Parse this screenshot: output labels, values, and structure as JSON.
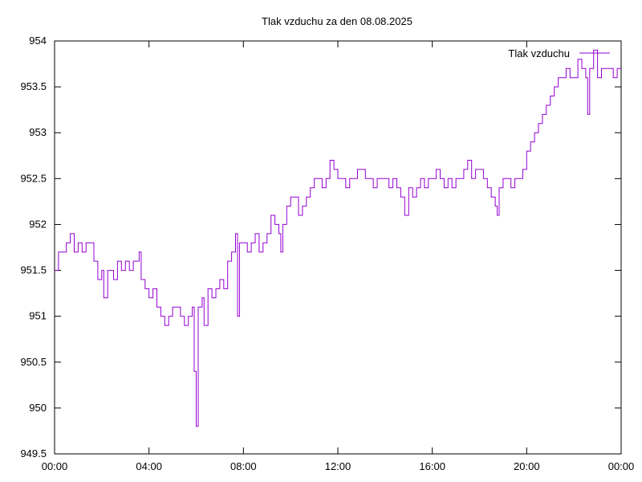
{
  "chart_data": {
    "type": "line",
    "title": "Tlak vzduchu za den 08.08.2025",
    "xlabel": "",
    "ylabel": "",
    "xlim": [
      "00:00",
      "24:00"
    ],
    "ylim": [
      949.5,
      954
    ],
    "x_ticks": [
      "00:00",
      "04:00",
      "08:00",
      "12:00",
      "16:00",
      "20:00",
      "00:00"
    ],
    "y_ticks": [
      "949.5",
      "950",
      "950.5",
      "951",
      "951.5",
      "952",
      "952.5",
      "953",
      "953.5",
      "954"
    ],
    "grid": false,
    "legend_position": "top-right",
    "series": [
      {
        "name": "Tlak vzduchu",
        "color": "#9400d3",
        "points": [
          [
            "00:00",
            951.5
          ],
          [
            "00:10",
            951.7
          ],
          [
            "00:20",
            951.7
          ],
          [
            "00:30",
            951.8
          ],
          [
            "00:40",
            951.9
          ],
          [
            "00:50",
            951.7
          ],
          [
            "01:00",
            951.8
          ],
          [
            "01:10",
            951.7
          ],
          [
            "01:20",
            951.8
          ],
          [
            "01:30",
            951.8
          ],
          [
            "01:40",
            951.6
          ],
          [
            "01:50",
            951.4
          ],
          [
            "02:00",
            951.5
          ],
          [
            "02:05",
            951.2
          ],
          [
            "02:15",
            951.5
          ],
          [
            "02:30",
            951.4
          ],
          [
            "02:40",
            951.6
          ],
          [
            "02:50",
            951.5
          ],
          [
            "03:00",
            951.6
          ],
          [
            "03:10",
            951.5
          ],
          [
            "03:20",
            951.6
          ],
          [
            "03:30",
            951.6
          ],
          [
            "03:35",
            951.7
          ],
          [
            "03:40",
            951.4
          ],
          [
            "03:50",
            951.3
          ],
          [
            "04:00",
            951.2
          ],
          [
            "04:10",
            951.3
          ],
          [
            "04:20",
            951.1
          ],
          [
            "04:30",
            951.0
          ],
          [
            "04:40",
            950.9
          ],
          [
            "04:50",
            951.0
          ],
          [
            "05:00",
            951.1
          ],
          [
            "05:10",
            951.1
          ],
          [
            "05:20",
            951.0
          ],
          [
            "05:30",
            950.9
          ],
          [
            "05:40",
            951.0
          ],
          [
            "05:50",
            951.1
          ],
          [
            "05:55",
            950.4
          ],
          [
            "06:00",
            949.8
          ],
          [
            "06:05",
            951.1
          ],
          [
            "06:15",
            951.2
          ],
          [
            "06:20",
            950.9
          ],
          [
            "06:30",
            951.3
          ],
          [
            "06:40",
            951.2
          ],
          [
            "06:50",
            951.3
          ],
          [
            "07:00",
            951.4
          ],
          [
            "07:10",
            951.3
          ],
          [
            "07:20",
            951.6
          ],
          [
            "07:30",
            951.7
          ],
          [
            "07:40",
            951.9
          ],
          [
            "07:45",
            951.0
          ],
          [
            "07:50",
            951.8
          ],
          [
            "08:00",
            951.8
          ],
          [
            "08:10",
            951.7
          ],
          [
            "08:20",
            951.8
          ],
          [
            "08:30",
            951.9
          ],
          [
            "08:40",
            951.7
          ],
          [
            "08:50",
            951.8
          ],
          [
            "09:00",
            951.9
          ],
          [
            "09:10",
            952.1
          ],
          [
            "09:20",
            952.0
          ],
          [
            "09:30",
            951.9
          ],
          [
            "09:35",
            951.7
          ],
          [
            "09:40",
            952.0
          ],
          [
            "09:50",
            952.2
          ],
          [
            "10:00",
            952.3
          ],
          [
            "10:10",
            952.3
          ],
          [
            "10:20",
            952.1
          ],
          [
            "10:30",
            952.2
          ],
          [
            "10:40",
            952.3
          ],
          [
            "10:50",
            952.4
          ],
          [
            "11:00",
            952.5
          ],
          [
            "11:10",
            952.5
          ],
          [
            "11:20",
            952.4
          ],
          [
            "11:30",
            952.5
          ],
          [
            "11:40",
            952.7
          ],
          [
            "11:50",
            952.6
          ],
          [
            "12:00",
            952.5
          ],
          [
            "12:10",
            952.5
          ],
          [
            "12:20",
            952.4
          ],
          [
            "12:30",
            952.5
          ],
          [
            "12:40",
            952.5
          ],
          [
            "12:50",
            952.6
          ],
          [
            "13:00",
            952.6
          ],
          [
            "13:10",
            952.5
          ],
          [
            "13:20",
            952.5
          ],
          [
            "13:30",
            952.4
          ],
          [
            "13:40",
            952.5
          ],
          [
            "13:50",
            952.5
          ],
          [
            "14:00",
            952.5
          ],
          [
            "14:10",
            952.4
          ],
          [
            "14:20",
            952.5
          ],
          [
            "14:30",
            952.4
          ],
          [
            "14:40",
            952.3
          ],
          [
            "14:50",
            952.1
          ],
          [
            "15:00",
            952.4
          ],
          [
            "15:10",
            952.3
          ],
          [
            "15:20",
            952.4
          ],
          [
            "15:30",
            952.5
          ],
          [
            "15:40",
            952.4
          ],
          [
            "15:50",
            952.5
          ],
          [
            "16:00",
            952.5
          ],
          [
            "16:10",
            952.6
          ],
          [
            "16:20",
            952.5
          ],
          [
            "16:30",
            952.4
          ],
          [
            "16:40",
            952.5
          ],
          [
            "16:50",
            952.4
          ],
          [
            "17:00",
            952.5
          ],
          [
            "17:10",
            952.5
          ],
          [
            "17:20",
            952.6
          ],
          [
            "17:30",
            952.7
          ],
          [
            "17:40",
            952.5
          ],
          [
            "17:50",
            952.6
          ],
          [
            "18:00",
            952.6
          ],
          [
            "18:10",
            952.5
          ],
          [
            "18:20",
            952.4
          ],
          [
            "18:30",
            952.3
          ],
          [
            "18:40",
            952.2
          ],
          [
            "18:45",
            952.1
          ],
          [
            "18:50",
            952.4
          ],
          [
            "19:00",
            952.5
          ],
          [
            "19:10",
            952.5
          ],
          [
            "19:20",
            952.4
          ],
          [
            "19:30",
            952.5
          ],
          [
            "19:40",
            952.5
          ],
          [
            "19:50",
            952.6
          ],
          [
            "20:00",
            952.8
          ],
          [
            "20:10",
            952.9
          ],
          [
            "20:20",
            953.0
          ],
          [
            "20:30",
            953.1
          ],
          [
            "20:40",
            953.2
          ],
          [
            "20:50",
            953.3
          ],
          [
            "21:00",
            953.4
          ],
          [
            "21:10",
            953.5
          ],
          [
            "21:20",
            953.6
          ],
          [
            "21:30",
            953.6
          ],
          [
            "21:40",
            953.7
          ],
          [
            "21:50",
            953.6
          ],
          [
            "22:00",
            953.6
          ],
          [
            "22:10",
            953.8
          ],
          [
            "22:20",
            953.7
          ],
          [
            "22:30",
            953.6
          ],
          [
            "22:35",
            953.2
          ],
          [
            "22:40",
            953.7
          ],
          [
            "22:50",
            953.9
          ],
          [
            "23:00",
            953.6
          ],
          [
            "23:10",
            953.7
          ],
          [
            "23:20",
            953.7
          ],
          [
            "23:30",
            953.7
          ],
          [
            "23:40",
            953.6
          ],
          [
            "23:50",
            953.7
          ],
          [
            "24:00",
            953.7
          ]
        ]
      }
    ]
  }
}
